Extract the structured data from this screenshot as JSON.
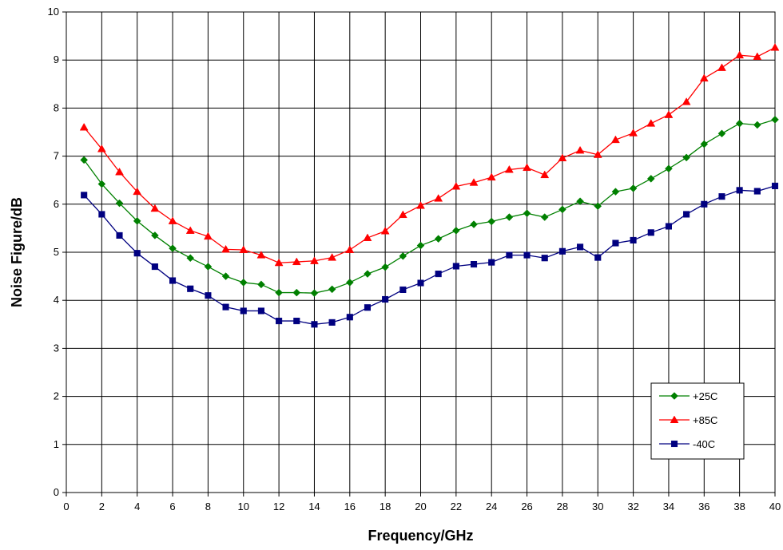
{
  "chart_data": {
    "type": "line",
    "xlabel": "Frequency/GHz",
    "ylabel": "Noise Figure/dB",
    "xlim": [
      0,
      40
    ],
    "ylim": [
      0,
      10
    ],
    "x_ticks": [
      0,
      2,
      4,
      6,
      8,
      10,
      12,
      14,
      16,
      18,
      20,
      22,
      24,
      26,
      28,
      30,
      32,
      34,
      36,
      38,
      40
    ],
    "y_ticks": [
      0,
      1,
      2,
      3,
      4,
      5,
      6,
      7,
      8,
      9,
      10
    ],
    "grid": true,
    "legend_position": "bottom-right",
    "x": [
      1,
      2,
      3,
      4,
      5,
      6,
      7,
      8,
      9,
      10,
      11,
      12,
      13,
      14,
      15,
      16,
      17,
      18,
      19,
      20,
      21,
      22,
      23,
      24,
      25,
      26,
      27,
      28,
      29,
      30,
      31,
      32,
      33,
      34,
      35,
      36,
      37,
      38,
      39,
      40
    ],
    "series": [
      {
        "name": "+25C",
        "color": "#008000",
        "marker": "diamond",
        "values": [
          6.92,
          6.42,
          6.02,
          5.65,
          5.35,
          5.08,
          4.88,
          4.7,
          4.5,
          4.37,
          4.33,
          4.16,
          4.16,
          4.15,
          4.23,
          4.37,
          4.55,
          4.69,
          4.92,
          5.14,
          5.28,
          5.45,
          5.58,
          5.64,
          5.73,
          5.81,
          5.73,
          5.89,
          6.06,
          5.96,
          6.26,
          6.33,
          6.53,
          6.74,
          6.97,
          7.25,
          7.47,
          7.68,
          7.65,
          7.76
        ]
      },
      {
        "name": "+85C",
        "color": "#ff0000",
        "marker": "triangle",
        "values": [
          7.6,
          7.15,
          6.67,
          6.26,
          5.91,
          5.65,
          5.45,
          5.33,
          5.06,
          5.05,
          4.94,
          4.78,
          4.8,
          4.82,
          4.89,
          5.05,
          5.3,
          5.44,
          5.78,
          5.97,
          6.12,
          6.37,
          6.45,
          6.56,
          6.72,
          6.76,
          6.61,
          6.96,
          7.12,
          7.03,
          7.34,
          7.48,
          7.68,
          7.86,
          8.13,
          8.62,
          8.84,
          9.1,
          9.07,
          9.26
        ]
      },
      {
        "name": "-40C",
        "color": "#000080",
        "marker": "square",
        "values": [
          6.19,
          5.79,
          5.35,
          4.98,
          4.7,
          4.41,
          4.24,
          4.1,
          3.86,
          3.78,
          3.78,
          3.57,
          3.57,
          3.5,
          3.54,
          3.65,
          3.85,
          4.02,
          4.22,
          4.36,
          4.55,
          4.71,
          4.75,
          4.79,
          4.94,
          4.94,
          4.88,
          5.02,
          5.11,
          4.89,
          5.19,
          5.25,
          5.41,
          5.54,
          5.79,
          6.0,
          6.16,
          6.29,
          6.27,
          6.38
        ]
      }
    ]
  }
}
